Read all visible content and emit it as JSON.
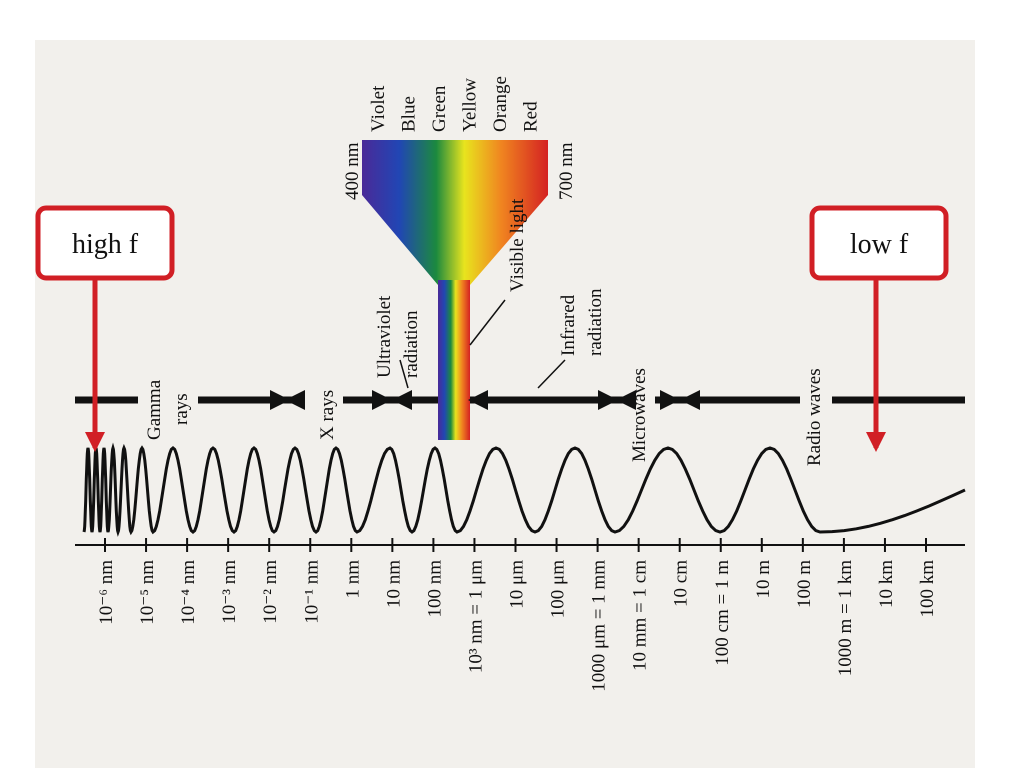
{
  "callouts": [
    {
      "label": "high f"
    },
    {
      "label": "low f"
    }
  ],
  "regions": [
    {
      "lines": [
        "Gamma",
        "rays"
      ]
    },
    {
      "lines": [
        "X rays"
      ]
    },
    {
      "lines": [
        "Ultraviolet",
        "radiation"
      ]
    },
    {
      "lines": [
        "Visible light"
      ]
    },
    {
      "lines": [
        "Infrared",
        "radiation"
      ]
    },
    {
      "lines": [
        "Microwaves"
      ]
    },
    {
      "lines": [
        "Radio waves"
      ]
    }
  ],
  "visible": {
    "start": "400 nm",
    "end": "700 nm",
    "colors": [
      "Violet",
      "Blue",
      "Green",
      "Yellow",
      "Orange",
      "Red"
    ]
  },
  "scale": [
    "10⁻⁶ nm",
    "10⁻⁵ nm",
    "10⁻⁴ nm",
    "10⁻³ nm",
    "10⁻² nm",
    "10⁻¹ nm",
    "1 nm",
    "10 nm",
    "100 nm",
    "10³ nm = 1 μm",
    "10 μm",
    "100 μm",
    "1000 μm = 1 mm",
    "10 mm = 1 cm",
    "10 cm",
    "100 cm = 1 m",
    "10 m",
    "100 m",
    "1000 m = 1 km",
    "10 km",
    "100 km"
  ]
}
